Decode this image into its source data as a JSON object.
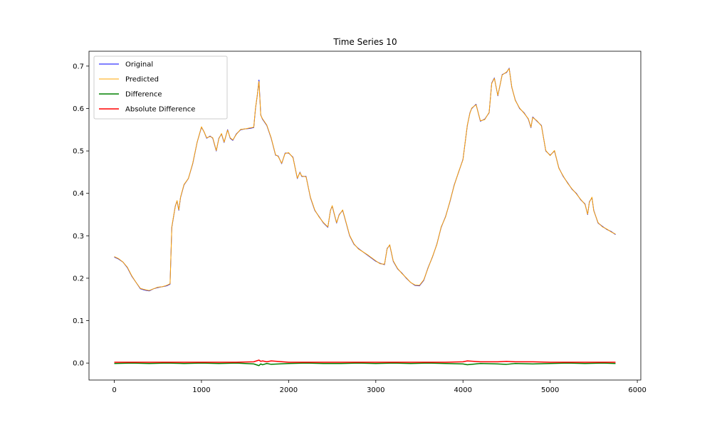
{
  "chart_data": {
    "type": "line",
    "title": "Time Series 10",
    "xlabel": "",
    "ylabel": "",
    "xlim": [
      -290,
      6040
    ],
    "ylim": [
      -0.04,
      0.735
    ],
    "x_ticks": [
      0,
      1000,
      2000,
      3000,
      4000,
      5000,
      6000
    ],
    "x_tick_labels": [
      "0",
      "1000",
      "2000",
      "3000",
      "4000",
      "5000",
      "6000"
    ],
    "y_ticks": [
      0.0,
      0.1,
      0.2,
      0.3,
      0.4,
      0.5,
      0.6,
      0.7
    ],
    "y_tick_labels": [
      "0.0",
      "0.1",
      "0.2",
      "0.3",
      "0.4",
      "0.5",
      "0.6",
      "0.7"
    ],
    "grid": false,
    "legend_position": "top-left",
    "series": [
      {
        "name": "Original",
        "color": "#0000ff",
        "x": [
          0,
          50,
          100,
          150,
          200,
          250,
          300,
          350,
          400,
          450,
          500,
          550,
          600,
          640,
          660,
          680,
          700,
          720,
          740,
          760,
          800,
          850,
          900,
          950,
          1000,
          1030,
          1060,
          1100,
          1130,
          1170,
          1200,
          1230,
          1260,
          1300,
          1330,
          1360,
          1400,
          1450,
          1500,
          1550,
          1600,
          1620,
          1640,
          1660,
          1680,
          1700,
          1750,
          1800,
          1850,
          1880,
          1920,
          1960,
          2000,
          2050,
          2100,
          2130,
          2150,
          2200,
          2250,
          2300,
          2350,
          2400,
          2450,
          2480,
          2500,
          2550,
          2580,
          2620,
          2660,
          2700,
          2750,
          2800,
          2900,
          3000,
          3050,
          3100,
          3130,
          3160,
          3200,
          3250,
          3300,
          3350,
          3400,
          3450,
          3500,
          3550,
          3600,
          3650,
          3700,
          3750,
          3800,
          3850,
          3900,
          3950,
          4000,
          4050,
          4080,
          4100,
          4150,
          4200,
          4250,
          4300,
          4330,
          4360,
          4400,
          4450,
          4500,
          4530,
          4560,
          4600,
          4650,
          4700,
          4750,
          4780,
          4800,
          4850,
          4900,
          4950,
          5000,
          5050,
          5100,
          5150,
          5200,
          5250,
          5300,
          5350,
          5400,
          5430,
          5450,
          5480,
          5500,
          5550,
          5600,
          5650,
          5700,
          5750
        ],
        "y": [
          0.25,
          0.245,
          0.238,
          0.225,
          0.205,
          0.19,
          0.175,
          0.172,
          0.17,
          0.175,
          0.178,
          0.18,
          0.182,
          0.186,
          0.32,
          0.345,
          0.37,
          0.382,
          0.36,
          0.39,
          0.42,
          0.435,
          0.47,
          0.52,
          0.556,
          0.545,
          0.53,
          0.535,
          0.53,
          0.5,
          0.53,
          0.54,
          0.52,
          0.55,
          0.53,
          0.525,
          0.54,
          0.55,
          0.552,
          0.553,
          0.555,
          0.6,
          0.63,
          0.667,
          0.585,
          0.575,
          0.56,
          0.53,
          0.49,
          0.488,
          0.47,
          0.495,
          0.495,
          0.485,
          0.435,
          0.45,
          0.44,
          0.44,
          0.39,
          0.36,
          0.345,
          0.33,
          0.32,
          0.36,
          0.37,
          0.33,
          0.35,
          0.36,
          0.33,
          0.3,
          0.28,
          0.27,
          0.255,
          0.24,
          0.235,
          0.232,
          0.27,
          0.278,
          0.24,
          0.222,
          0.212,
          0.2,
          0.19,
          0.183,
          0.182,
          0.195,
          0.225,
          0.25,
          0.28,
          0.32,
          0.345,
          0.38,
          0.42,
          0.45,
          0.48,
          0.56,
          0.59,
          0.6,
          0.61,
          0.57,
          0.575,
          0.59,
          0.66,
          0.672,
          0.63,
          0.68,
          0.685,
          0.695,
          0.65,
          0.62,
          0.6,
          0.59,
          0.575,
          0.555,
          0.58,
          0.57,
          0.56,
          0.5,
          0.49,
          0.5,
          0.46,
          0.44,
          0.425,
          0.41,
          0.4,
          0.385,
          0.375,
          0.35,
          0.38,
          0.39,
          0.36,
          0.33,
          0.322,
          0.315,
          0.31,
          0.303
        ]
      },
      {
        "name": "Predicted",
        "color": "#ffa500",
        "x": [
          0,
          50,
          100,
          150,
          200,
          250,
          300,
          350,
          400,
          450,
          500,
          550,
          600,
          640,
          660,
          680,
          700,
          720,
          740,
          760,
          800,
          850,
          900,
          950,
          1000,
          1030,
          1060,
          1100,
          1130,
          1170,
          1200,
          1230,
          1260,
          1300,
          1330,
          1360,
          1400,
          1450,
          1500,
          1550,
          1600,
          1620,
          1640,
          1660,
          1680,
          1700,
          1750,
          1800,
          1850,
          1880,
          1920,
          1960,
          2000,
          2050,
          2100,
          2130,
          2150,
          2200,
          2250,
          2300,
          2350,
          2400,
          2450,
          2480,
          2500,
          2550,
          2580,
          2620,
          2660,
          2700,
          2750,
          2800,
          2900,
          3000,
          3050,
          3100,
          3130,
          3160,
          3200,
          3250,
          3300,
          3350,
          3400,
          3450,
          3500,
          3550,
          3600,
          3650,
          3700,
          3750,
          3800,
          3850,
          3900,
          3950,
          4000,
          4050,
          4080,
          4100,
          4150,
          4200,
          4250,
          4300,
          4330,
          4360,
          4400,
          4450,
          4500,
          4530,
          4560,
          4600,
          4650,
          4700,
          4750,
          4780,
          4800,
          4850,
          4900,
          4950,
          5000,
          5050,
          5100,
          5150,
          5200,
          5250,
          5300,
          5350,
          5400,
          5430,
          5450,
          5480,
          5500,
          5550,
          5600,
          5650,
          5700,
          5750
        ],
        "y": [
          0.251,
          0.246,
          0.238,
          0.226,
          0.206,
          0.19,
          0.176,
          0.173,
          0.171,
          0.175,
          0.179,
          0.18,
          0.183,
          0.187,
          0.321,
          0.346,
          0.369,
          0.383,
          0.361,
          0.391,
          0.421,
          0.435,
          0.471,
          0.52,
          0.557,
          0.545,
          0.531,
          0.534,
          0.531,
          0.501,
          0.529,
          0.541,
          0.521,
          0.549,
          0.531,
          0.526,
          0.539,
          0.551,
          0.552,
          0.554,
          0.556,
          0.601,
          0.631,
          0.664,
          0.584,
          0.576,
          0.561,
          0.531,
          0.491,
          0.487,
          0.471,
          0.494,
          0.496,
          0.484,
          0.436,
          0.449,
          0.441,
          0.439,
          0.391,
          0.361,
          0.344,
          0.331,
          0.321,
          0.359,
          0.371,
          0.331,
          0.349,
          0.361,
          0.331,
          0.301,
          0.281,
          0.269,
          0.256,
          0.241,
          0.234,
          0.233,
          0.269,
          0.279,
          0.241,
          0.223,
          0.211,
          0.201,
          0.19,
          0.184,
          0.183,
          0.196,
          0.224,
          0.251,
          0.279,
          0.321,
          0.344,
          0.381,
          0.419,
          0.451,
          0.479,
          0.561,
          0.589,
          0.601,
          0.609,
          0.571,
          0.574,
          0.591,
          0.659,
          0.671,
          0.631,
          0.679,
          0.686,
          0.694,
          0.651,
          0.619,
          0.601,
          0.589,
          0.576,
          0.556,
          0.579,
          0.571,
          0.559,
          0.501,
          0.489,
          0.501,
          0.459,
          0.441,
          0.424,
          0.411,
          0.399,
          0.386,
          0.374,
          0.351,
          0.379,
          0.391,
          0.359,
          0.331,
          0.321,
          0.316,
          0.309,
          0.304
        ]
      },
      {
        "name": "Difference",
        "color": "#008000",
        "x": [
          0,
          200,
          400,
          600,
          800,
          1000,
          1200,
          1400,
          1600,
          1660,
          1680,
          1700,
          1750,
          1800,
          2000,
          2200,
          2400,
          2600,
          2800,
          3000,
          3200,
          3400,
          3600,
          3800,
          4000,
          4050,
          4200,
          4400,
          4500,
          4600,
          4800,
          5000,
          5200,
          5400,
          5600,
          5750
        ],
        "y": [
          -0.001,
          0.0,
          -0.001,
          0.0,
          -0.001,
          0.0,
          -0.001,
          0.0,
          -0.002,
          -0.006,
          -0.002,
          -0.004,
          -0.001,
          -0.003,
          -0.001,
          0.0,
          -0.001,
          -0.001,
          0.0,
          -0.001,
          0.0,
          -0.001,
          0.0,
          -0.001,
          -0.002,
          -0.004,
          -0.001,
          -0.002,
          -0.003,
          -0.001,
          -0.002,
          -0.001,
          0.0,
          -0.001,
          0.0,
          -0.001
        ]
      },
      {
        "name": "Absolute Difference",
        "color": "#ff0000",
        "x": [
          0,
          200,
          400,
          600,
          800,
          1000,
          1200,
          1400,
          1600,
          1660,
          1680,
          1700,
          1750,
          1800,
          2000,
          2200,
          2400,
          2600,
          2800,
          3000,
          3200,
          3400,
          3600,
          3800,
          4000,
          4050,
          4200,
          4400,
          4500,
          4600,
          4800,
          5000,
          5200,
          5400,
          5600,
          5750
        ],
        "y": [
          0.002,
          0.002,
          0.002,
          0.002,
          0.002,
          0.002,
          0.002,
          0.002,
          0.003,
          0.007,
          0.004,
          0.005,
          0.003,
          0.005,
          0.002,
          0.002,
          0.002,
          0.002,
          0.002,
          0.002,
          0.002,
          0.002,
          0.002,
          0.002,
          0.003,
          0.005,
          0.003,
          0.003,
          0.004,
          0.003,
          0.003,
          0.002,
          0.002,
          0.002,
          0.002,
          0.002
        ]
      }
    ]
  }
}
